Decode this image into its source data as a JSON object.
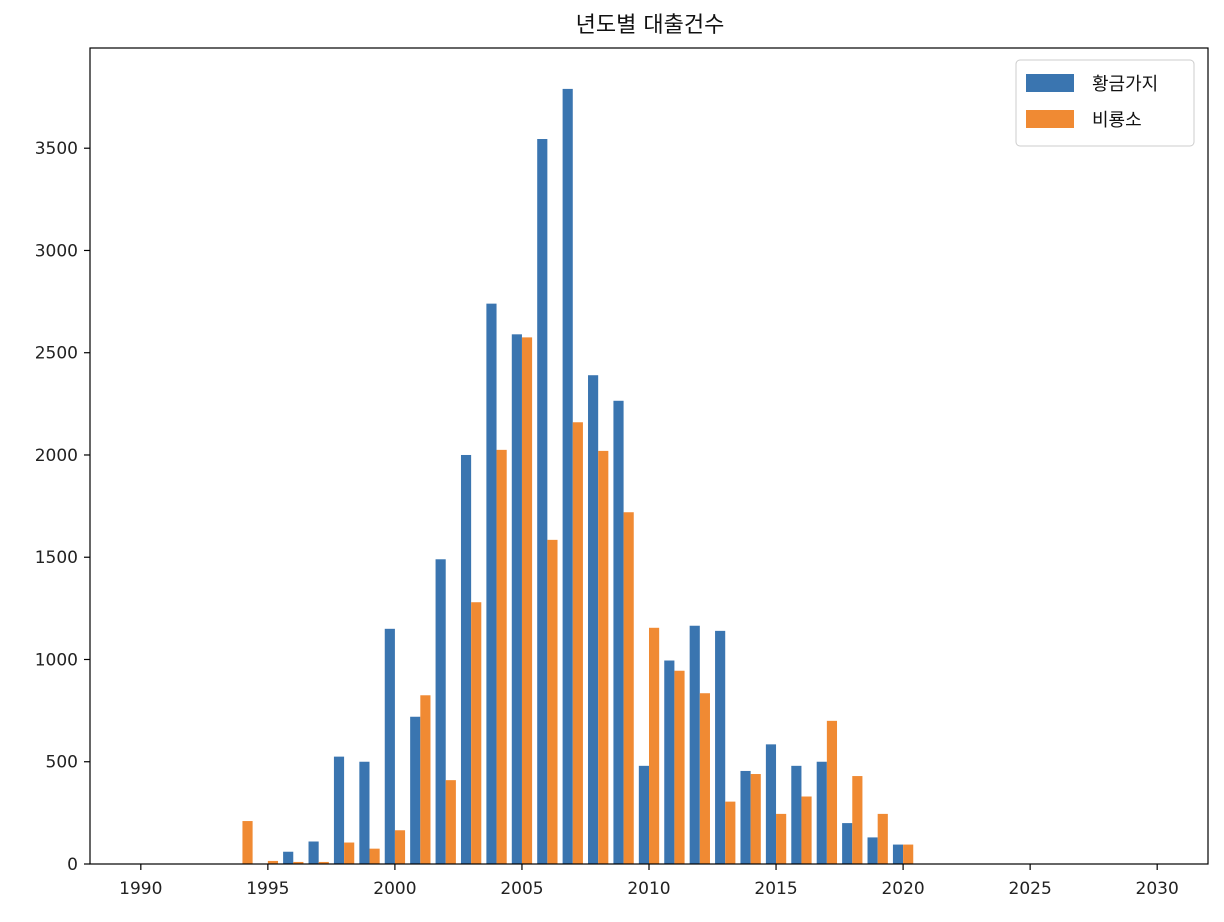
{
  "chart_data": {
    "type": "bar",
    "title": "년도별 대출건수",
    "xlabel": "",
    "ylabel": "",
    "xlim": [
      1988,
      2032
    ],
    "ylim": [
      0,
      3990
    ],
    "x_ticks": [
      1990,
      1995,
      2000,
      2005,
      2010,
      2015,
      2020,
      2025,
      2030
    ],
    "y_ticks": [
      0,
      500,
      1000,
      1500,
      2000,
      2500,
      3000,
      3500
    ],
    "legend_position": "top-right",
    "grid": false,
    "years": [
      1994,
      1995,
      1996,
      1997,
      1998,
      1999,
      2000,
      2001,
      2002,
      2003,
      2004,
      2005,
      2006,
      2007,
      2008,
      2009,
      2010,
      2011,
      2012,
      2013,
      2014,
      2015,
      2016,
      2017,
      2018,
      2019,
      2020
    ],
    "series": [
      {
        "name": "황금가지",
        "color": "#3a75b0",
        "values": [
          0,
          0,
          60,
          110,
          525,
          500,
          1150,
          720,
          1490,
          2000,
          2740,
          2590,
          3545,
          3790,
          2390,
          2265,
          480,
          995,
          1165,
          1140,
          455,
          585,
          480,
          500,
          200,
          130,
          95
        ]
      },
      {
        "name": "비룡소",
        "color": "#f08a33",
        "values": [
          210,
          15,
          10,
          10,
          105,
          75,
          165,
          825,
          410,
          1280,
          2025,
          2575,
          1585,
          2160,
          2020,
          1720,
          1155,
          945,
          835,
          305,
          440,
          245,
          330,
          700,
          430,
          245,
          95
        ]
      }
    ]
  }
}
